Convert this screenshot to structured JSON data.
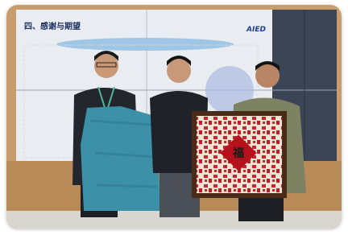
{
  "screen": {
    "title": "四、感谢与期望",
    "logo": "AIED"
  }
}
